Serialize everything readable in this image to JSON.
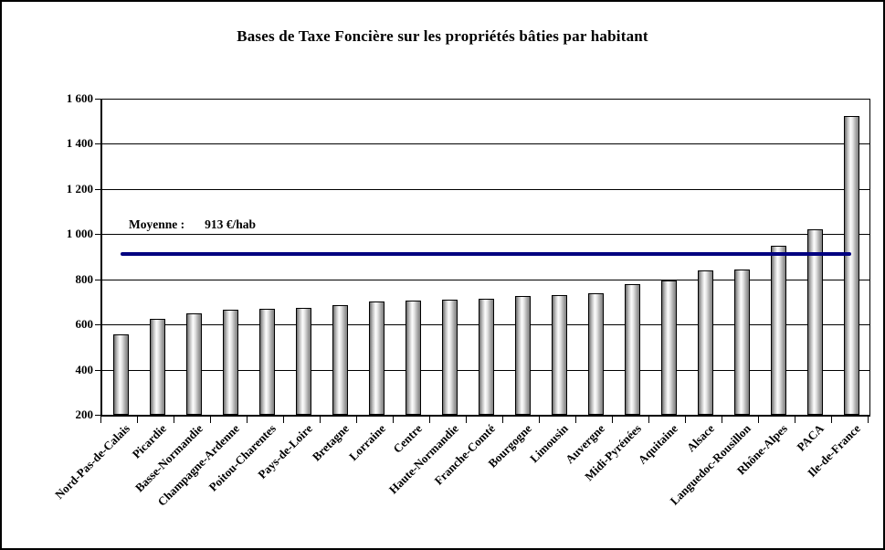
{
  "chart_data": {
    "type": "bar",
    "title": "Bases de Taxe Foncière sur les propriétés bâties par habitant",
    "categories": [
      "Nord-Pas-de-Calais",
      "Picardie",
      "Basse-Normandie",
      "Champagne-Ardenne",
      "Poitou-Charentes",
      "Pays-de-Loire",
      "Bretagne",
      "Lorraine",
      "Centre",
      "Haute-Normandie",
      "Franche-Comté",
      "Bourgogne",
      "Limousin",
      "Auvergne",
      "Midi-Pyrénées",
      "Aquitaine",
      "Alsace",
      "Languedoc-Rousillon",
      "Rhône-Alpes",
      "PACA",
      "Ile-de-France"
    ],
    "values": [
      555,
      625,
      650,
      665,
      670,
      675,
      685,
      700,
      705,
      710,
      715,
      725,
      730,
      740,
      780,
      795,
      840,
      845,
      950,
      1020,
      1525
    ],
    "unit": "€/hab",
    "xlabel": "",
    "ylabel": "",
    "ylim": [
      200,
      1600
    ],
    "ytick_interval": 200,
    "ytick_labels": [
      "200",
      "400",
      "600",
      "800",
      "1 000",
      "1 200",
      "1 400",
      "1 600"
    ],
    "grid": true,
    "legend_position": "none",
    "bar_fill": "gray-gradient-cylinder",
    "bar_outline_color": "#000000",
    "average_line": {
      "label": "Moyenne :",
      "value_text": "913 €/hab",
      "value": 913,
      "color": "#000080"
    }
  }
}
